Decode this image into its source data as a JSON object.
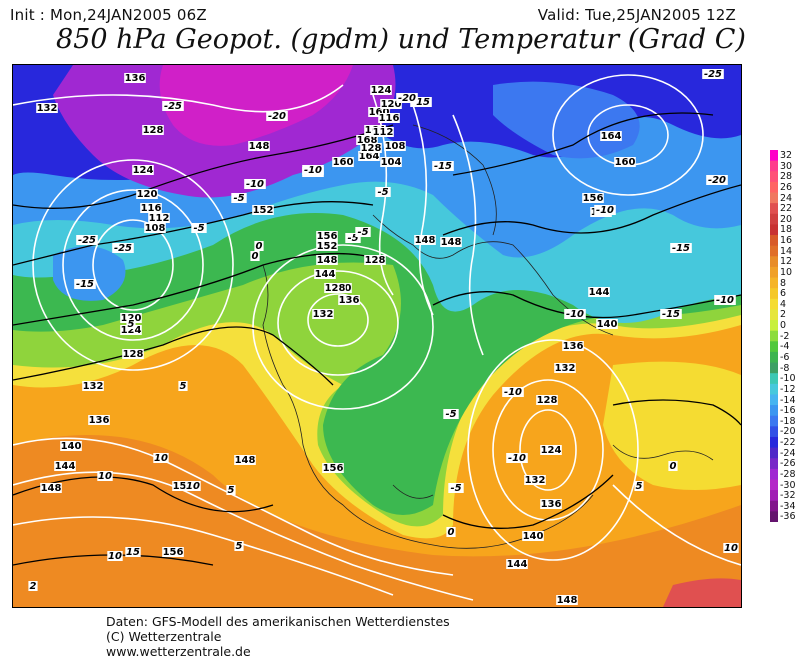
{
  "header": {
    "init": "Init : Mon,24JAN2005 06Z",
    "valid": "Valid: Tue,25JAN2005 12Z",
    "title": "850 hPa Geopot. (gpdm) und Temperatur (Grad C)"
  },
  "footer": {
    "line1": "Daten: GFS-Modell des amerikanischen Wetterdienstes",
    "line2": "(C) Wetterzentrale",
    "line3": "www.wetterzentrale.de"
  },
  "legend": {
    "ticks": [
      "32",
      "30",
      "28",
      "26",
      "24",
      "22",
      "20",
      "18",
      "16",
      "14",
      "12",
      "10",
      "8",
      "6",
      "4",
      "2",
      "0",
      "-2",
      "-4",
      "-6",
      "-8",
      "-10",
      "-12",
      "-14",
      "-16",
      "-18",
      "-20",
      "-22",
      "-24",
      "-26",
      "-28",
      "-30",
      "-32",
      "-34",
      "-36"
    ],
    "colors": [
      "#ff00c8",
      "#ff3c8c",
      "#ff5078",
      "#ff6464",
      "#f07860",
      "#e05050",
      "#d04040",
      "#c83232",
      "#d85a28",
      "#e06e28",
      "#e88c28",
      "#f0a028",
      "#f5b428",
      "#f5c828",
      "#f5dc32",
      "#e6e63c",
      "#c8f03c",
      "#8cdc3c",
      "#50c83c",
      "#3cb450",
      "#3ca064",
      "#3cc8b4",
      "#46c8dc",
      "#46b4f0",
      "#3c96f0",
      "#3c78f0",
      "#3250e6",
      "#2828dc",
      "#5028c8",
      "#7828c8",
      "#a028d2",
      "#b428c8",
      "#a01eb4",
      "#82148c",
      "#64146e"
    ]
  },
  "map": {
    "geopotential_labels": [
      "136",
      "132",
      "128",
      "124",
      "120",
      "116",
      "112",
      "108",
      "120",
      "124",
      "128",
      "132",
      "136",
      "140",
      "144",
      "148",
      "148",
      "152",
      "156",
      "160",
      "164",
      "168",
      "164",
      "160",
      "156",
      "152",
      "148",
      "144",
      "140",
      "136",
      "132",
      "128",
      "124",
      "120",
      "116",
      "112",
      "108",
      "104",
      "148",
      "152",
      "156",
      "160",
      "164",
      "156",
      "152",
      "148",
      "144",
      "140",
      "136",
      "132",
      "128",
      "124",
      "132",
      "136",
      "140",
      "144",
      "148",
      "156",
      "128",
      "128",
      "148"
    ],
    "temperature_labels": [
      "-25",
      "-25",
      "-20",
      "-15",
      "-10",
      "-5",
      "0",
      "-5",
      "-10",
      "-15",
      "-20",
      "-25",
      "-15",
      "-10",
      "-5",
      "0",
      "-5",
      "5",
      "10",
      "10",
      "15",
      "5",
      "5",
      "10",
      "0",
      "-5",
      "-10",
      "-15",
      "-20",
      "-25",
      "-10",
      "-10",
      "-15",
      "-10",
      "-5",
      "5",
      "10",
      "0",
      "-5",
      "5",
      "2",
      "10"
    ]
  }
}
